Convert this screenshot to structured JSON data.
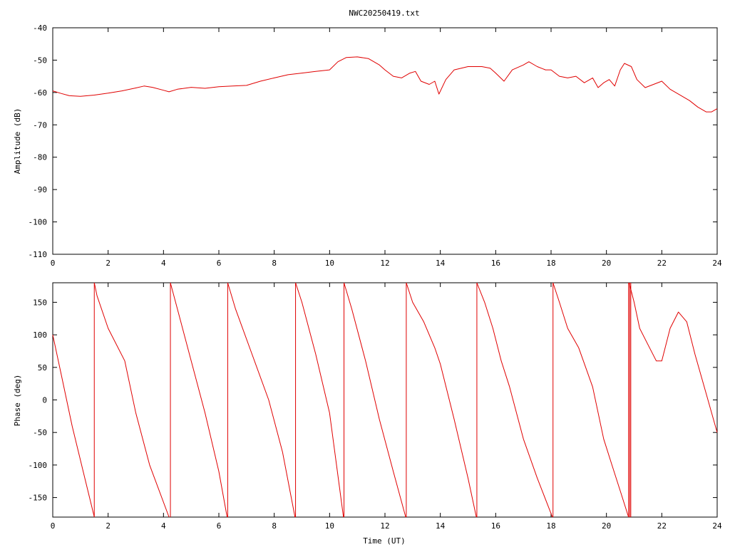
{
  "chart_data": [
    {
      "type": "line",
      "title": "NWC20250419.txt",
      "xlabel": "",
      "ylabel": "Amplitude (dB)",
      "xlim": [
        0,
        24
      ],
      "ylim": [
        -110,
        -40
      ],
      "xticks": [
        "0",
        "2",
        "4",
        "6",
        "8",
        "10",
        "12",
        "14",
        "16",
        "18",
        "20",
        "22",
        "24"
      ],
      "yticks": [
        "-40",
        "-50",
        "-60",
        "-70",
        "-80",
        "-90",
        "-100",
        "-110"
      ],
      "grid": false,
      "color": "#e00000",
      "series": [
        {
          "x": [
            0,
            0.3,
            0.6,
            1.0,
            1.5,
            2.0,
            2.5,
            3.0,
            3.3,
            3.6,
            4.0,
            4.2,
            4.5,
            5.0,
            5.5,
            6.0,
            6.5,
            7.0,
            7.5,
            8.0,
            8.5,
            9.0,
            9.5,
            10.0,
            10.3,
            10.6,
            11.0,
            11.4,
            11.8,
            12.0,
            12.3,
            12.6,
            12.9,
            13.1,
            13.3,
            13.6,
            13.8,
            13.95,
            14.2,
            14.5,
            15.0,
            15.5,
            15.8,
            16.0,
            16.3,
            16.6,
            17.0,
            17.2,
            17.5,
            17.8,
            18.0,
            18.3,
            18.6,
            18.9,
            19.2,
            19.5,
            19.7,
            19.9,
            20.1,
            20.3,
            20.5,
            20.65,
            20.9,
            21.1,
            21.4,
            21.7,
            22.0,
            22.3,
            22.6,
            23.0,
            23.3,
            23.6,
            23.8,
            24.0
          ],
          "y": [
            -59.5,
            -60.3,
            -61.0,
            -61.2,
            -60.8,
            -60.2,
            -59.5,
            -58.6,
            -58.0,
            -58.4,
            -59.3,
            -59.8,
            -59.0,
            -58.4,
            -58.7,
            -58.2,
            -58.0,
            -57.8,
            -56.5,
            -55.5,
            -54.5,
            -54.0,
            -53.5,
            -53.0,
            -50.5,
            -49.2,
            -49.0,
            -49.5,
            -51.5,
            -53.0,
            -55.0,
            -55.5,
            -54.0,
            -53.5,
            -56.5,
            -57.5,
            -56.5,
            -60.5,
            -56.0,
            -53.0,
            -52.0,
            -52.0,
            -52.5,
            -54.0,
            -56.5,
            -53.0,
            -51.5,
            -50.5,
            -52.0,
            -53.0,
            -53.0,
            -55.0,
            -55.5,
            -55.0,
            -57.0,
            -55.5,
            -58.5,
            -57.0,
            -56.0,
            -58.0,
            -53.0,
            -51.0,
            -52.0,
            -56.0,
            -58.5,
            -57.5,
            -56.5,
            -59.0,
            -60.5,
            -62.5,
            -64.5,
            -66.0,
            -66.0,
            -65.0
          ]
        }
      ]
    },
    {
      "type": "line",
      "title": "",
      "xlabel": "Time (UT)",
      "ylabel": "Phase (deg)",
      "xlim": [
        0,
        24
      ],
      "ylim": [
        -180,
        180
      ],
      "xticks": [
        "0",
        "2",
        "4",
        "6",
        "8",
        "10",
        "12",
        "14",
        "16",
        "18",
        "20",
        "22",
        "24"
      ],
      "yticks": [
        "150",
        "100",
        "50",
        "0",
        "-50",
        "-100",
        "-150"
      ],
      "grid": false,
      "color": "#e00000",
      "series": [
        {
          "segments": [
            {
              "x": [
                0,
                0.3,
                0.7,
                1.1,
                1.5
              ],
              "y": [
                100,
                40,
                -40,
                -110,
                -180
              ]
            },
            {
              "x": [
                1.5,
                1.6,
                2.0,
                2.6,
                3.0,
                3.5,
                4.2
              ],
              "y": [
                180,
                160,
                110,
                60,
                -20,
                -100,
                -180
              ]
            },
            {
              "x": [
                4.25,
                4.5,
                5.0,
                5.5,
                6.0,
                6.3
              ],
              "y": [
                180,
                140,
                60,
                -20,
                -110,
                -180
              ]
            },
            {
              "x": [
                6.32,
                6.6,
                7.2,
                7.8,
                8.3,
                8.75
              ],
              "y": [
                180,
                140,
                70,
                0,
                -80,
                -180
              ]
            },
            {
              "x": [
                8.77,
                9.0,
                9.5,
                10.0,
                10.5
              ],
              "y": [
                180,
                150,
                70,
                -20,
                -180
              ]
            },
            {
              "x": [
                10.52,
                10.8,
                11.3,
                11.8,
                12.3,
                12.75
              ],
              "y": [
                180,
                140,
                60,
                -30,
                -110,
                -180
              ]
            },
            {
              "x": [
                12.77,
                13.0,
                13.4,
                13.8,
                14.0,
                14.5,
                15.0,
                15.3
              ],
              "y": [
                180,
                150,
                120,
                80,
                55,
                -30,
                -120,
                -180
              ]
            },
            {
              "x": [
                15.32,
                15.6,
                15.9,
                16.2,
                16.5,
                17.0,
                17.5,
                18.05
              ],
              "y": [
                180,
                150,
                110,
                60,
                20,
                -60,
                -120,
                -180
              ]
            },
            {
              "x": [
                18.07,
                18.3,
                18.6,
                19.0,
                19.5,
                19.9,
                20.2,
                20.5,
                20.8
              ],
              "y": [
                180,
                150,
                110,
                80,
                20,
                -60,
                -100,
                -140,
                -180
              ]
            },
            {
              "x": [
                20.82,
                21.0,
                21.2,
                21.5,
                21.8,
                22.0,
                22.3,
                22.6,
                22.9,
                23.2,
                23.6,
                24.0
              ],
              "y": [
                180,
                150,
                110,
                85,
                60,
                60,
                110,
                135,
                120,
                70,
                10,
                -50
              ]
            }
          ],
          "wraps": [
            {
              "x": 1.5,
              "y": [
                -180,
                180
              ]
            },
            {
              "x": 4.25,
              "y": [
                -180,
                180
              ]
            },
            {
              "x": 6.32,
              "y": [
                -180,
                180
              ]
            },
            {
              "x": 8.77,
              "y": [
                -180,
                180
              ]
            },
            {
              "x": 10.52,
              "y": [
                -180,
                180
              ]
            },
            {
              "x": 12.77,
              "y": [
                -180,
                180
              ]
            },
            {
              "x": 15.32,
              "y": [
                -180,
                180
              ]
            },
            {
              "x": 18.07,
              "y": [
                -180,
                180
              ]
            },
            {
              "x": 20.8,
              "y": [
                -180,
                180
              ]
            },
            {
              "x": 20.84,
              "y": [
                -180,
                180
              ]
            },
            {
              "x": 20.88,
              "y": [
                -180,
                180
              ]
            }
          ]
        }
      ]
    }
  ]
}
